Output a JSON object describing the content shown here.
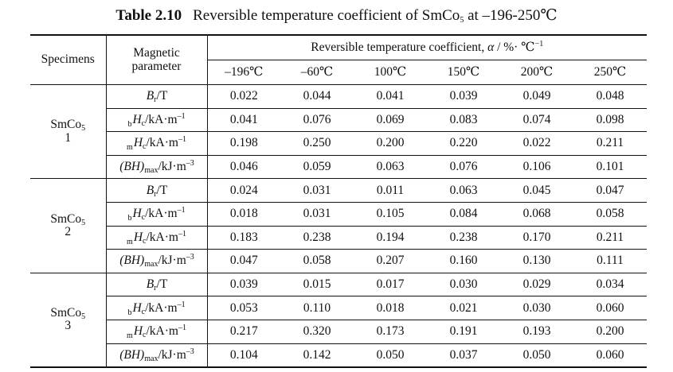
{
  "caption": {
    "number": "Table 2.10",
    "title_prefix": "Reversible temperature coefficient of SmCo",
    "title_sub": "5",
    "title_suffix": " at –196-250℃"
  },
  "header": {
    "specimens": "Specimens",
    "parameter_line1": "Magnetic",
    "parameter_line2": "parameter",
    "coef_prefix": "Reversible temperature coefficient, ",
    "coef_symbol": "α",
    "coef_unit": " / %· ℃",
    "coef_exp": "−1",
    "temps": [
      "–196℃",
      "–60℃",
      "100℃",
      "150℃",
      "200℃",
      "250℃"
    ]
  },
  "param_parts": [
    {
      "pre": "",
      "sym": "B",
      "sub": "r",
      "unit": "/T",
      "sup": ""
    },
    {
      "pre": "b",
      "sym": "H",
      "sub": "c",
      "unit": "/kA·m",
      "sup": "–1"
    },
    {
      "pre": "m",
      "sym": "H",
      "sub": "c",
      "unit": "/kA·m",
      "sup": "–1"
    },
    {
      "pre": "",
      "sym": "(BH)",
      "sub": "max",
      "unit": "/kJ·m",
      "sup": "–3"
    }
  ],
  "groups": [
    {
      "name": "SmCo",
      "name_sub": "5",
      "index": "1",
      "rows": [
        [
          "0.022",
          "0.044",
          "0.041",
          "0.039",
          "0.049",
          "0.048"
        ],
        [
          "0.041",
          "0.076",
          "0.069",
          "0.083",
          "0.074",
          "0.098"
        ],
        [
          "0.198",
          "0.250",
          "0.200",
          "0.220",
          "0.022",
          "0.211"
        ],
        [
          "0.046",
          "0.059",
          "0.063",
          "0.076",
          "0.106",
          "0.101"
        ]
      ]
    },
    {
      "name": "SmCo",
      "name_sub": "5",
      "index": "2",
      "rows": [
        [
          "0.024",
          "0.031",
          "0.011",
          "0.063",
          "0.045",
          "0.047"
        ],
        [
          "0.018",
          "0.031",
          "0.105",
          "0.084",
          "0.068",
          "0.058"
        ],
        [
          "0.183",
          "0.238",
          "0.194",
          "0.238",
          "0.170",
          "0.211"
        ],
        [
          "0.047",
          "0.058",
          "0.207",
          "0.160",
          "0.130",
          "0.111"
        ]
      ]
    },
    {
      "name": "SmCo",
      "name_sub": "5",
      "index": "3",
      "rows": [
        [
          "0.039",
          "0.015",
          "0.017",
          "0.030",
          "0.029",
          "0.034"
        ],
        [
          "0.053",
          "0.110",
          "0.018",
          "0.021",
          "0.030",
          "0.060"
        ],
        [
          "0.217",
          "0.320",
          "0.173",
          "0.191",
          "0.193",
          "0.200"
        ],
        [
          "0.104",
          "0.142",
          "0.050",
          "0.037",
          "0.050",
          "0.060"
        ]
      ]
    }
  ]
}
